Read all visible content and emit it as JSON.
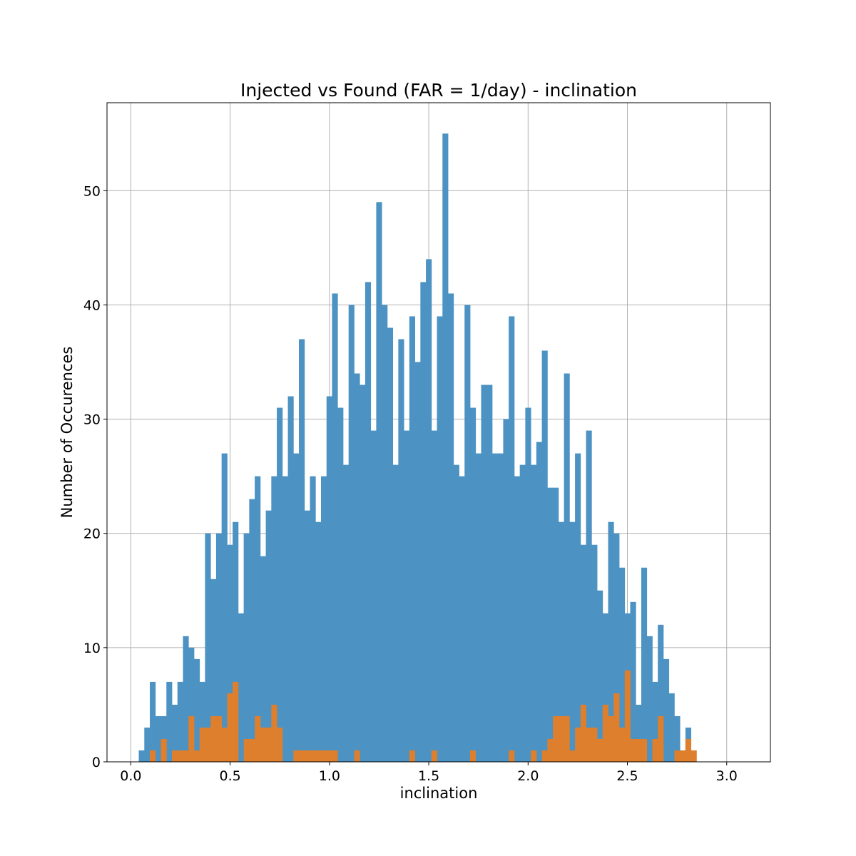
{
  "chart_data": {
    "type": "bar",
    "title": "Injected vs Found (FAR = 1/day) - inclination",
    "xlabel": "inclination",
    "ylabel": "Number of Occurences",
    "xlim": [
      -0.12,
      3.22
    ],
    "ylim": [
      0,
      57.7
    ],
    "xticks": [
      0.0,
      0.5,
      1.0,
      1.5,
      2.0,
      2.5,
      3.0
    ],
    "xtick_labels": [
      "0.0",
      "0.5",
      "1.0",
      "1.5",
      "2.0",
      "2.5",
      "3.0"
    ],
    "yticks": [
      0,
      10,
      20,
      30,
      40,
      50
    ],
    "ytick_labels": [
      "0",
      "10",
      "20",
      "30",
      "40",
      "50"
    ],
    "grid": true,
    "bin_start": 0.04,
    "bin_width": 0.0278,
    "series": [
      {
        "color": "#4c92c3",
        "values": [
          1,
          3,
          7,
          4,
          4,
          7,
          5,
          7,
          11,
          10,
          9,
          7,
          20,
          16,
          20,
          27,
          19,
          21,
          13,
          20,
          23,
          25,
          18,
          22,
          25,
          31,
          25,
          32,
          27,
          37,
          22,
          25,
          21,
          25,
          32,
          41,
          31,
          26,
          40,
          34,
          33,
          42,
          29,
          49,
          40,
          38,
          26,
          37,
          29,
          39,
          35,
          42,
          44,
          29,
          39,
          55,
          41,
          26,
          25,
          40,
          31,
          27,
          33,
          33,
          27,
          27,
          30,
          39,
          25,
          26,
          31,
          26,
          28,
          36,
          24,
          24,
          21,
          34,
          21,
          27,
          19,
          29,
          19,
          15,
          13,
          21,
          20,
          17,
          13,
          14,
          5,
          17,
          11,
          7,
          12,
          9,
          6,
          4,
          1,
          3
        ]
      },
      {
        "color": "#de7f2e",
        "values": [
          0,
          0,
          1,
          0,
          2,
          0,
          1,
          1,
          1,
          4,
          1,
          3,
          3,
          4,
          4,
          3,
          6,
          7,
          0,
          2,
          2,
          4,
          3,
          3,
          5,
          3,
          0,
          0,
          1,
          1,
          1,
          1,
          1,
          1,
          1,
          1,
          0,
          0,
          0,
          1,
          0,
          0,
          0,
          0,
          0,
          0,
          0,
          0,
          0,
          1,
          0,
          0,
          0,
          1,
          0,
          0,
          0,
          0,
          0,
          0,
          1,
          0,
          0,
          0,
          0,
          0,
          0,
          1,
          0,
          0,
          0,
          1,
          0,
          1,
          2,
          4,
          4,
          4,
          1,
          3,
          5,
          3,
          3,
          2,
          5,
          4,
          6,
          3,
          8,
          2,
          2,
          2,
          0,
          2,
          4,
          0,
          0,
          1,
          1,
          2,
          1,
          0
        ]
      }
    ]
  }
}
